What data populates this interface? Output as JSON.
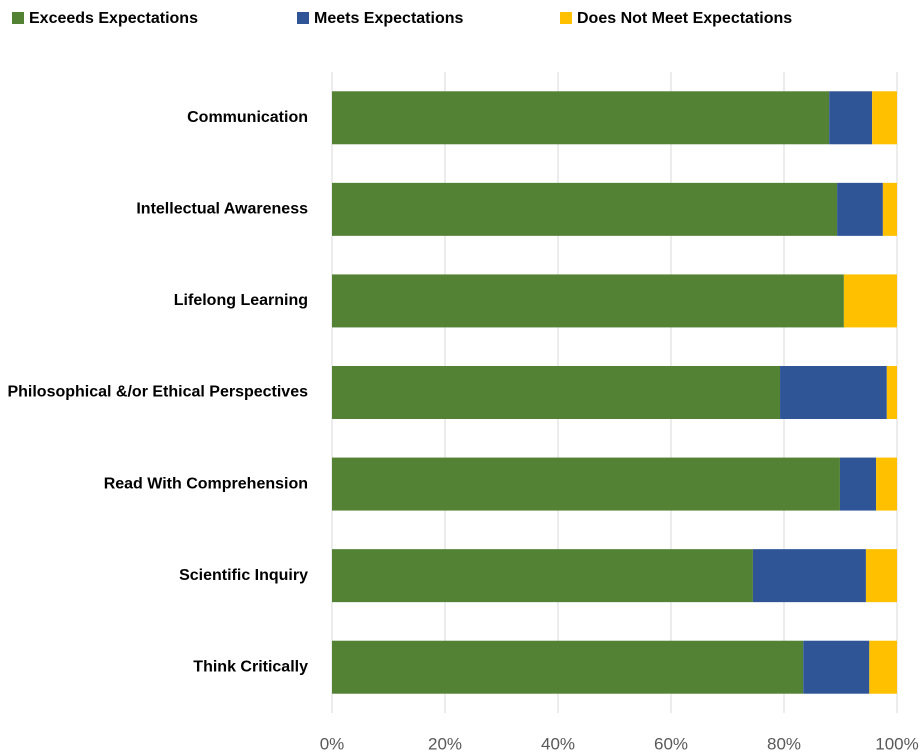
{
  "chart_data": {
    "type": "stacked-barh",
    "categories": [
      "Communication",
      "Intellectual Awareness",
      "Lifelong Learning",
      "Philosophical &/or Ethical Perspectives",
      "Read With Comprehension",
      "Scientific Inquiry",
      "Think Critically"
    ],
    "series": [
      {
        "name": "Exceeds Expectations",
        "color": "#548235",
        "values": [
          88.0,
          89.4,
          90.6,
          79.3,
          89.9,
          74.5,
          83.4
        ]
      },
      {
        "name": "Meets Expectations",
        "color": "#2f5597",
        "values": [
          7.6,
          8.1,
          0,
          18.9,
          6.4,
          20.0,
          11.7
        ]
      },
      {
        "name": "Does Not Meet Expectations",
        "color": "#ffc000",
        "values": [
          4.4,
          2.5,
          9.4,
          1.8,
          3.7,
          5.5,
          4.9
        ]
      }
    ],
    "xlim": [
      0,
      100
    ],
    "xticks": [
      {
        "value": 0,
        "label": "0%"
      },
      {
        "value": 20,
        "label": "20%"
      },
      {
        "value": 40,
        "label": "40%"
      },
      {
        "value": 60,
        "label": "60%"
      },
      {
        "value": 80,
        "label": "80%"
      },
      {
        "value": 100,
        "label": "100%"
      }
    ],
    "grid": true,
    "legend": "top"
  }
}
